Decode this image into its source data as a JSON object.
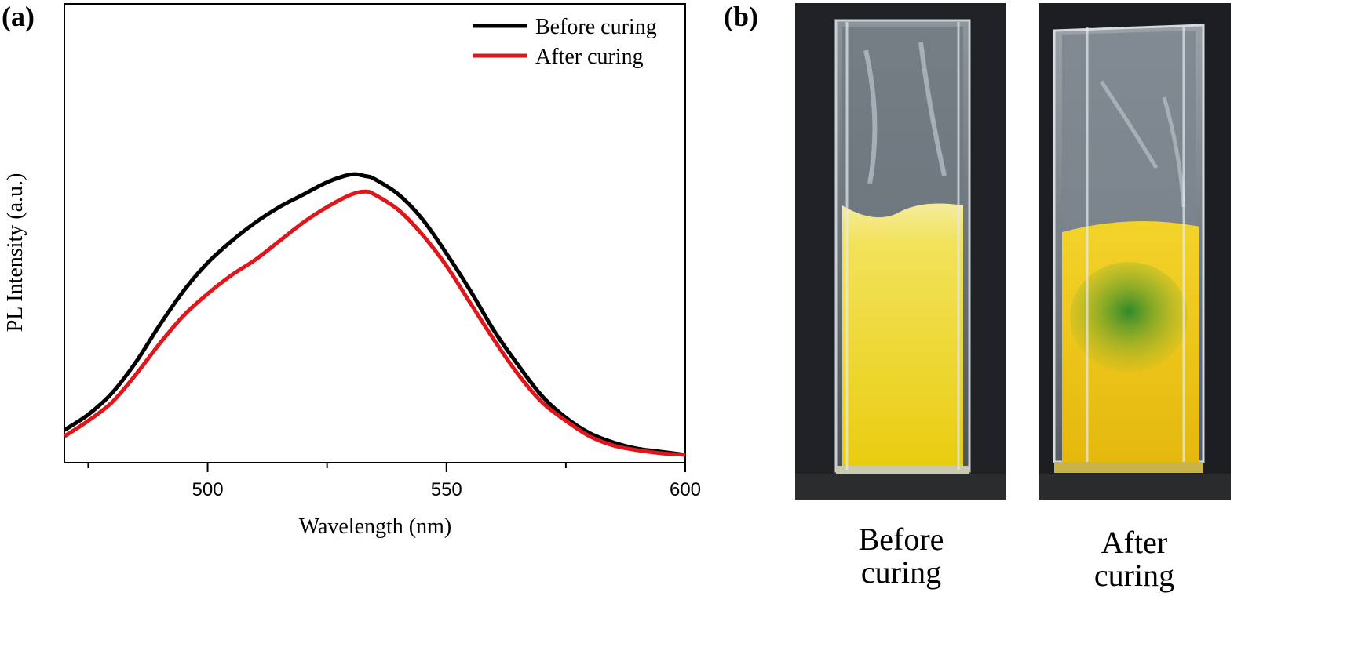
{
  "panels": {
    "a_label": "(a)",
    "b_label": "(b)"
  },
  "chart_data": {
    "type": "line",
    "xlabel": "Wavelength (nm)",
    "ylabel": "PL Intensity (a.u.)",
    "xlim": [
      470,
      600
    ],
    "ylim": [
      0,
      1
    ],
    "x_ticks": [
      500,
      550,
      600
    ],
    "y_ticks": [],
    "legend_position": "top-right",
    "grid": false,
    "series": [
      {
        "name": "Before curing",
        "color": "#000000",
        "x": [
          470,
          475,
          480,
          485,
          490,
          495,
          500,
          505,
          510,
          515,
          520,
          525,
          530,
          533,
          535,
          540,
          545,
          550,
          555,
          560,
          565,
          570,
          575,
          580,
          585,
          590,
          595,
          600
        ],
        "y": [
          0.08,
          0.13,
          0.2,
          0.3,
          0.42,
          0.53,
          0.62,
          0.69,
          0.75,
          0.8,
          0.84,
          0.88,
          0.905,
          0.9,
          0.89,
          0.84,
          0.76,
          0.65,
          0.53,
          0.4,
          0.29,
          0.19,
          0.12,
          0.07,
          0.04,
          0.02,
          0.01,
          0.0
        ]
      },
      {
        "name": "After curing",
        "color": "#e0161c",
        "x": [
          470,
          475,
          480,
          485,
          490,
          495,
          500,
          505,
          510,
          515,
          520,
          525,
          530,
          533,
          535,
          540,
          545,
          550,
          555,
          560,
          565,
          570,
          575,
          580,
          585,
          590,
          595,
          600
        ],
        "y": [
          0.06,
          0.11,
          0.17,
          0.26,
          0.36,
          0.45,
          0.52,
          0.58,
          0.63,
          0.69,
          0.75,
          0.8,
          0.84,
          0.85,
          0.84,
          0.79,
          0.71,
          0.61,
          0.49,
          0.37,
          0.26,
          0.17,
          0.11,
          0.06,
          0.03,
          0.015,
          0.005,
          0.0
        ]
      }
    ]
  },
  "photos": {
    "before": {
      "caption_line1": "Before",
      "caption_line2": "curing",
      "liquid_color": "#f2e03a"
    },
    "after": {
      "caption_line1": "After",
      "caption_line2": "curing",
      "liquid_color": "#e8c418",
      "gel_color": "#3f8a2a"
    }
  }
}
